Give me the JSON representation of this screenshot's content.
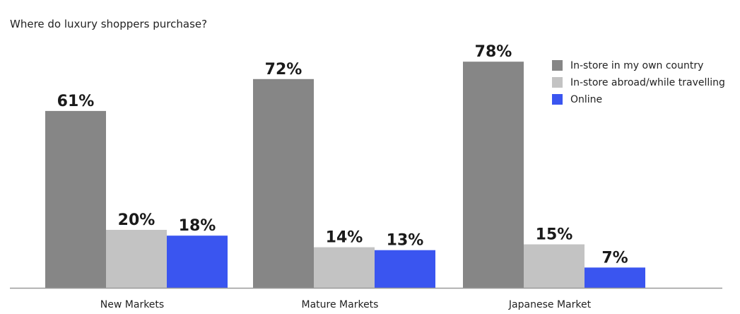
{
  "chart_data": {
    "type": "bar",
    "title": "Where do luxury shoppers purchase?",
    "categories": [
      "New Markets",
      "Mature Markets",
      "Japanese Market"
    ],
    "series": [
      {
        "name": "In-store in my own country",
        "color": "#868686",
        "values": [
          61,
          72,
          78
        ]
      },
      {
        "name": "In-store abroad/while travelling",
        "color": "#c3c3c3",
        "values": [
          20,
          14,
          15
        ]
      },
      {
        "name": "Online",
        "color": "#3a55f0",
        "values": [
          18,
          13,
          7
        ]
      }
    ],
    "value_suffix": "%",
    "ylim": [
      0,
      100
    ],
    "grid": false,
    "legend_position": "top-right",
    "xlabel": "",
    "ylabel": ""
  }
}
